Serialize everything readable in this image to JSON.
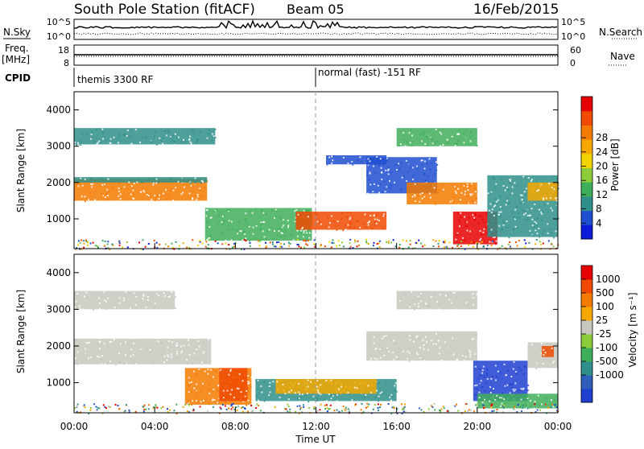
{
  "header": {
    "station": "South Pole Station (fitACF)",
    "beam": "Beam 05",
    "date": "16/Feb/2015"
  },
  "noise_panel": {
    "left_label": "N.Sky",
    "right_label": "N.Search",
    "ticks_left": [
      "10^5",
      "10^0"
    ],
    "ticks_right": [
      "10^5",
      "10^0"
    ]
  },
  "freq_panel": {
    "left_label_1": "Freq.",
    "left_label_2": "[MHz]",
    "ticks_left": [
      "18",
      "8"
    ],
    "ticks_right": [
      "60",
      "0"
    ],
    "right_label": "Nave"
  },
  "cpid": {
    "label": "CPID",
    "segments": [
      {
        "text": "themis 3300 RF",
        "start_hour": 0
      },
      {
        "text": "normal (fast) -151 RF",
        "start_hour": 12
      }
    ]
  },
  "chart_data": [
    {
      "type": "heatmap",
      "title": "",
      "quantity": "Power",
      "ylabel": "Slant Range [km]",
      "xlabel": "Time UT",
      "ylim": [
        180,
        4500
      ],
      "yticks": [
        1000,
        2000,
        3000,
        4000
      ],
      "xlim_hours": [
        0,
        24
      ],
      "colorbar": {
        "label": "Power [dB]",
        "ticks": [
          "4",
          "8",
          "12",
          "16",
          "20",
          "24",
          "28"
        ],
        "colors": [
          "#0a1cd8",
          "#1f4fd0",
          "#2f8f8a",
          "#3fae5a",
          "#8ccc3a",
          "#f2d400",
          "#f6a800",
          "#f47a00",
          "#ef4a00",
          "#e60000"
        ]
      },
      "bands": [
        {
          "t0": 0.0,
          "t1": 6.6,
          "r0": 1500,
          "r1": 2100,
          "color": "#f47a00"
        },
        {
          "t0": 0.0,
          "t1": 6.6,
          "r0": 2000,
          "r1": 2150,
          "color": "#2f8f8a"
        },
        {
          "t0": 0.0,
          "t1": 7.0,
          "r0": 3050,
          "r1": 3500,
          "color": "#2f8f8a"
        },
        {
          "t0": 6.5,
          "t1": 11.8,
          "r0": 400,
          "r1": 1300,
          "color": "#3fae5a"
        },
        {
          "t0": 11.0,
          "t1": 15.5,
          "r0": 700,
          "r1": 1200,
          "color": "#ef4a00"
        },
        {
          "t0": 14.5,
          "t1": 18.0,
          "r0": 1700,
          "r1": 2700,
          "color": "#1f4fd0"
        },
        {
          "t0": 16.5,
          "t1": 20.0,
          "r0": 1400,
          "r1": 2000,
          "color": "#f47a00"
        },
        {
          "t0": 16.0,
          "t1": 20.0,
          "r0": 3000,
          "r1": 3500,
          "color": "#3fae5a"
        },
        {
          "t0": 18.8,
          "t1": 21.0,
          "r0": 300,
          "r1": 1200,
          "color": "#e60000"
        },
        {
          "t0": 20.5,
          "t1": 24.0,
          "r0": 500,
          "r1": 2200,
          "color": "#2f8f8a"
        },
        {
          "t0": 22.5,
          "t1": 24.0,
          "r0": 1500,
          "r1": 2000,
          "color": "#f6a800"
        },
        {
          "t0": 12.5,
          "t1": 15.5,
          "r0": 2500,
          "r1": 2750,
          "color": "#1f4fd0"
        }
      ]
    },
    {
      "type": "heatmap",
      "title": "",
      "quantity": "Velocity",
      "ylabel": "Slant Range [km]",
      "xlabel": "Time UT",
      "ylim": [
        180,
        4500
      ],
      "yticks": [
        1000,
        2000,
        3000,
        4000
      ],
      "xlim_hours": [
        0,
        24
      ],
      "xticks": [
        "00:00",
        "04:00",
        "08:00",
        "12:00",
        "16:00",
        "20:00",
        "00:00"
      ],
      "colorbar": {
        "label": "Velocity [m s⁻¹]",
        "ticks": [
          "1000",
          "500",
          "100",
          "25",
          "-25",
          "-100",
          "-500",
          "-1000"
        ],
        "colors": [
          "#1f3fd0",
          "#2f5fb8",
          "#2f8f8a",
          "#3fae5a",
          "#8ccc3a",
          "#c8c8c0",
          "#f6a800",
          "#f47a00",
          "#ef4a00",
          "#e60000"
        ]
      },
      "bands": [
        {
          "t0": 0.0,
          "t1": 6.8,
          "r0": 1500,
          "r1": 2200,
          "color": "#c8c8c0"
        },
        {
          "t0": 0.0,
          "t1": 5.0,
          "r0": 3000,
          "r1": 3500,
          "color": "#c8c8c0"
        },
        {
          "t0": 5.5,
          "t1": 8.8,
          "r0": 400,
          "r1": 1400,
          "color": "#f47a00"
        },
        {
          "t0": 7.2,
          "t1": 8.6,
          "r0": 500,
          "r1": 1400,
          "color": "#ef4a00"
        },
        {
          "t0": 9.0,
          "t1": 16.0,
          "r0": 500,
          "r1": 1100,
          "color": "#2f8f8a"
        },
        {
          "t0": 10.0,
          "t1": 15.0,
          "r0": 700,
          "r1": 1100,
          "color": "#f6a800"
        },
        {
          "t0": 14.5,
          "t1": 20.0,
          "r0": 1600,
          "r1": 2400,
          "color": "#c8c8c0"
        },
        {
          "t0": 16.0,
          "t1": 20.0,
          "r0": 3000,
          "r1": 3500,
          "color": "#c8c8c0"
        },
        {
          "t0": 19.8,
          "t1": 22.5,
          "r0": 500,
          "r1": 1600,
          "color": "#1f3fd0"
        },
        {
          "t0": 20.0,
          "t1": 24.0,
          "r0": 300,
          "r1": 700,
          "color": "#3fae5a"
        },
        {
          "t0": 22.5,
          "t1": 24.0,
          "r0": 1400,
          "r1": 2100,
          "color": "#c8c8c0"
        },
        {
          "t0": 23.2,
          "t1": 23.8,
          "r0": 1700,
          "r1": 2000,
          "color": "#ef4a00"
        }
      ]
    }
  ]
}
